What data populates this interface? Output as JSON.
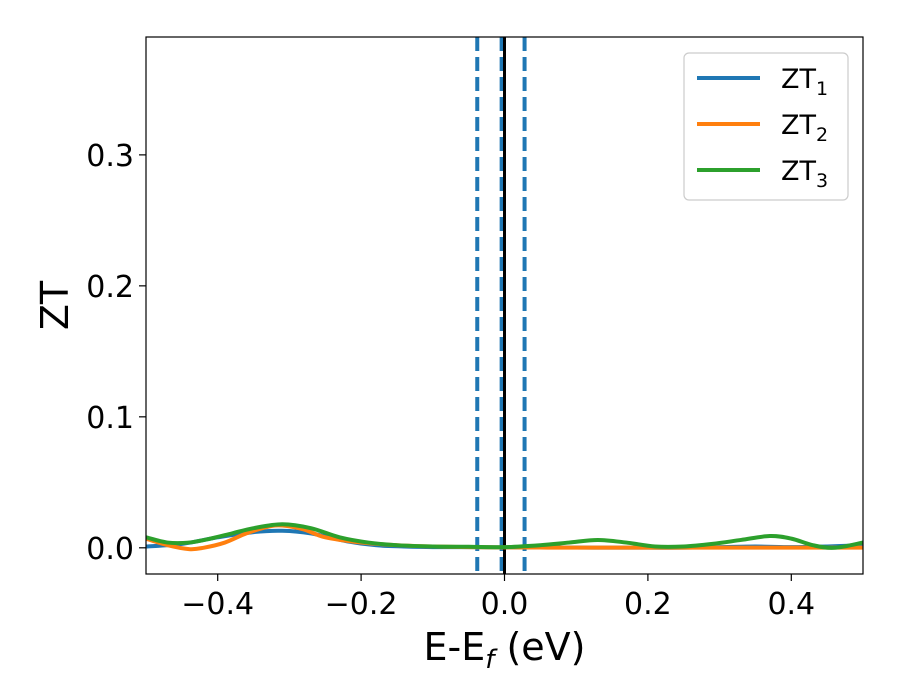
{
  "chart_data": {
    "type": "line",
    "xlabel": "E-E",
    "xlabel_sub": "f",
    "xlabel_unit": " (eV)",
    "ylabel": "ZT",
    "xlim": [
      -0.5,
      0.5
    ],
    "ylim": [
      -0.02,
      0.39
    ],
    "x_ticks": [
      -0.4,
      -0.2,
      0.0,
      0.2,
      0.4
    ],
    "x_tick_labels": [
      "−0.4",
      "−0.2",
      "0.0",
      "0.2",
      "0.4"
    ],
    "y_ticks": [
      0.0,
      0.1,
      0.2,
      0.3
    ],
    "y_tick_labels": [
      "0.0",
      "0.1",
      "0.2",
      "0.3"
    ],
    "grid": false,
    "legend_position": "top-right",
    "vlines": [
      {
        "x": -0.038,
        "style": "dashed",
        "color": "#1f77b4"
      },
      {
        "x": -0.004,
        "style": "dashed",
        "color": "#1f77b4"
      },
      {
        "x": 0.028,
        "style": "dashed",
        "color": "#1f77b4"
      },
      {
        "x": 0.0,
        "style": "solid",
        "color": "#000000"
      }
    ],
    "series": [
      {
        "name": "ZT",
        "name_sub": "1",
        "color": "#1f77b4",
        "x": [
          -0.5,
          -0.45,
          -0.4,
          -0.35,
          -0.31,
          -0.27,
          -0.22,
          -0.18,
          -0.14,
          -0.1,
          -0.05,
          0.0,
          0.05,
          0.1,
          0.15,
          0.2,
          0.25,
          0.3,
          0.35,
          0.4,
          0.45,
          0.5
        ],
        "y": [
          0.001,
          0.003,
          0.008,
          0.012,
          0.013,
          0.011,
          0.005,
          0.002,
          0.001,
          0.0005,
          0.0005,
          0.0003,
          0.0002,
          0.0002,
          0.0001,
          0.0001,
          0.0001,
          0.0005,
          0.001,
          0.0005,
          0.001,
          0.002
        ]
      },
      {
        "name": "ZT",
        "name_sub": "2",
        "color": "#ff7f0e",
        "x": [
          -0.5,
          -0.47,
          -0.44,
          -0.42,
          -0.39,
          -0.36,
          -0.33,
          -0.31,
          -0.28,
          -0.25,
          -0.2,
          -0.15,
          -0.1,
          -0.05,
          0.0,
          0.05,
          0.1,
          0.15,
          0.2,
          0.25,
          0.3,
          0.35,
          0.4,
          0.45,
          0.5
        ],
        "y": [
          0.007,
          0.002,
          -0.001,
          0.0,
          0.004,
          0.011,
          0.016,
          0.017,
          0.014,
          0.008,
          0.004,
          0.002,
          0.001,
          0.0005,
          0.0003,
          0.0002,
          0.0001,
          0.0001,
          0.0001,
          0.0001,
          0.0001,
          0.0001,
          0.0001,
          0.0001,
          0.0001
        ]
      },
      {
        "name": "ZT",
        "name_sub": "3",
        "color": "#2ca02c",
        "x": [
          -0.5,
          -0.47,
          -0.44,
          -0.41,
          -0.38,
          -0.35,
          -0.31,
          -0.27,
          -0.23,
          -0.19,
          -0.15,
          -0.1,
          -0.05,
          0.0,
          0.05,
          0.09,
          0.13,
          0.17,
          0.21,
          0.25,
          0.29,
          0.33,
          0.37,
          0.4,
          0.43,
          0.46,
          0.5
        ],
        "y": [
          0.008,
          0.004,
          0.004,
          0.007,
          0.011,
          0.015,
          0.018,
          0.015,
          0.008,
          0.004,
          0.002,
          0.001,
          0.0008,
          0.0005,
          0.002,
          0.004,
          0.006,
          0.004,
          0.001,
          0.001,
          0.003,
          0.006,
          0.009,
          0.007,
          0.002,
          0.0,
          0.004
        ]
      }
    ]
  }
}
